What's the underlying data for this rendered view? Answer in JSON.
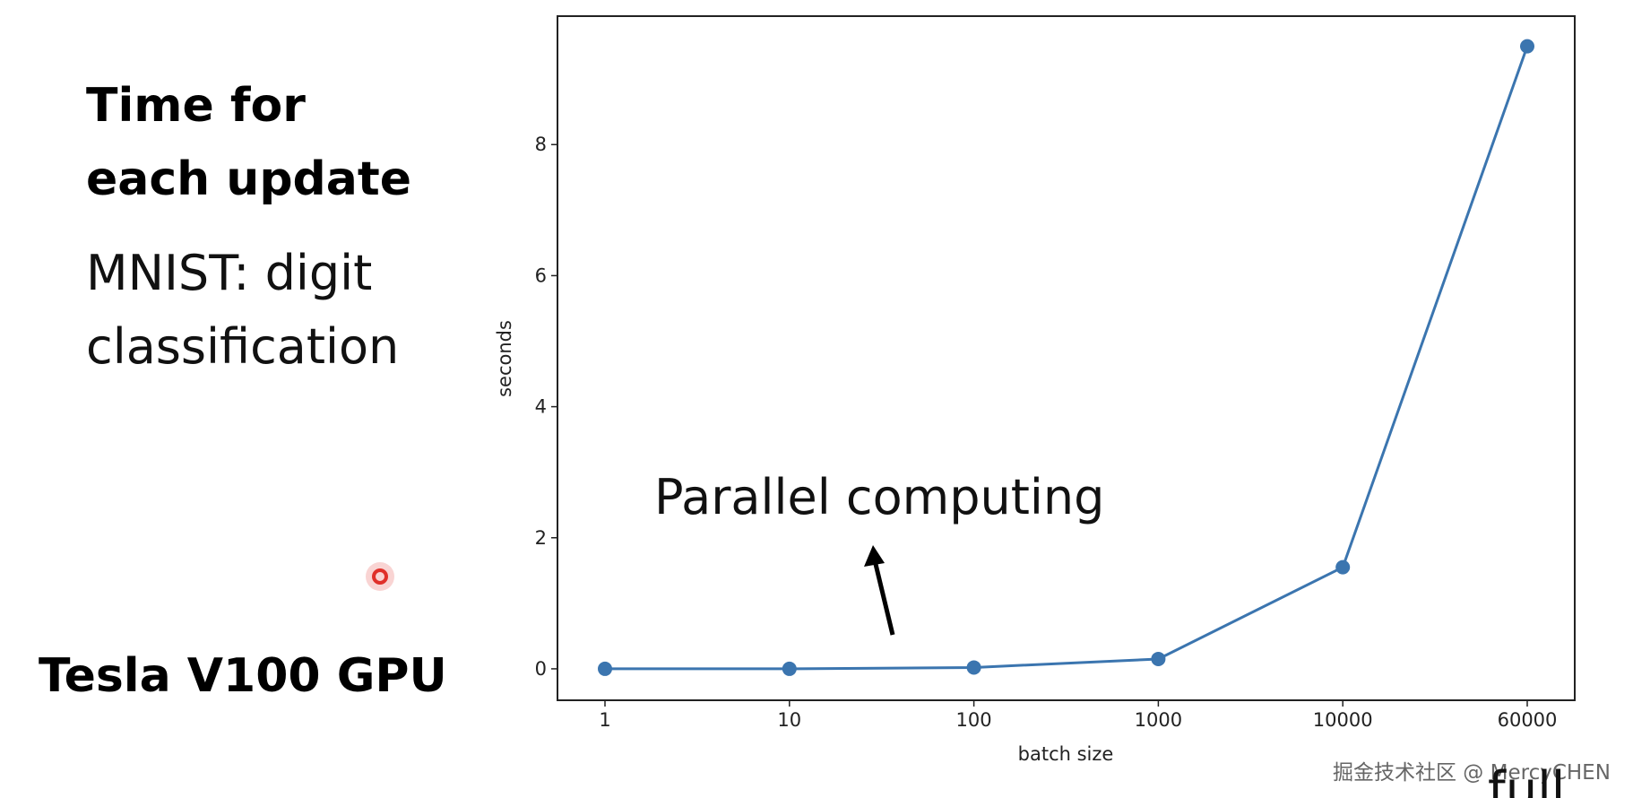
{
  "slide": {
    "heading": [
      "Time for",
      "each update"
    ],
    "subheading": [
      "MNIST: digit",
      "classification"
    ],
    "device": "Tesla V100 GPU",
    "watermark": "掘金技术社区 @ MercyCHEN",
    "caption": "full"
  },
  "chart_data": {
    "type": "line",
    "xlabel": "batch size",
    "ylabel": "seconds",
    "categories": [
      "1",
      "10",
      "100",
      "1000",
      "10000",
      "60000"
    ],
    "values": [
      0,
      0,
      0.02,
      0.15,
      1.55,
      9.5
    ],
    "color": "#3b75af",
    "ylim": [
      -0.48,
      9.96
    ],
    "yticks": [
      0,
      2,
      4,
      6,
      8
    ],
    "annotation": "Parallel computing"
  }
}
